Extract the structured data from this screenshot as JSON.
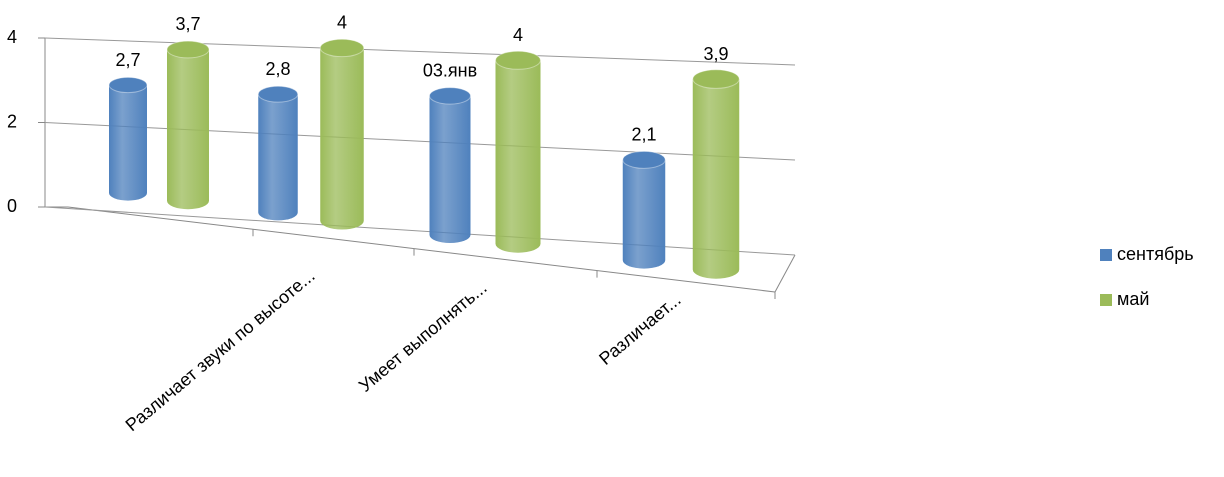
{
  "chart_data": {
    "type": "bar3d",
    "categories": [
      null,
      "Различает звуки по высоте...",
      "Умеет выполнять...",
      "Различает..."
    ],
    "series": [
      {
        "name": "сентябрь",
        "color": "#4f81bd",
        "values": [
          2.7,
          2.8,
          3.1,
          2.1
        ],
        "value_labels": [
          "2,7",
          "2,8",
          "03.янв",
          "2,1"
        ]
      },
      {
        "name": "май",
        "color": "#9bbb59",
        "values": [
          3.7,
          4,
          4,
          3.9
        ],
        "value_labels": [
          "3,7",
          "4",
          "4",
          "3,9"
        ]
      }
    ],
    "ylim": [
      0,
      4
    ],
    "yticks": [
      0,
      2,
      4
    ],
    "grid": true,
    "legend": "right"
  }
}
